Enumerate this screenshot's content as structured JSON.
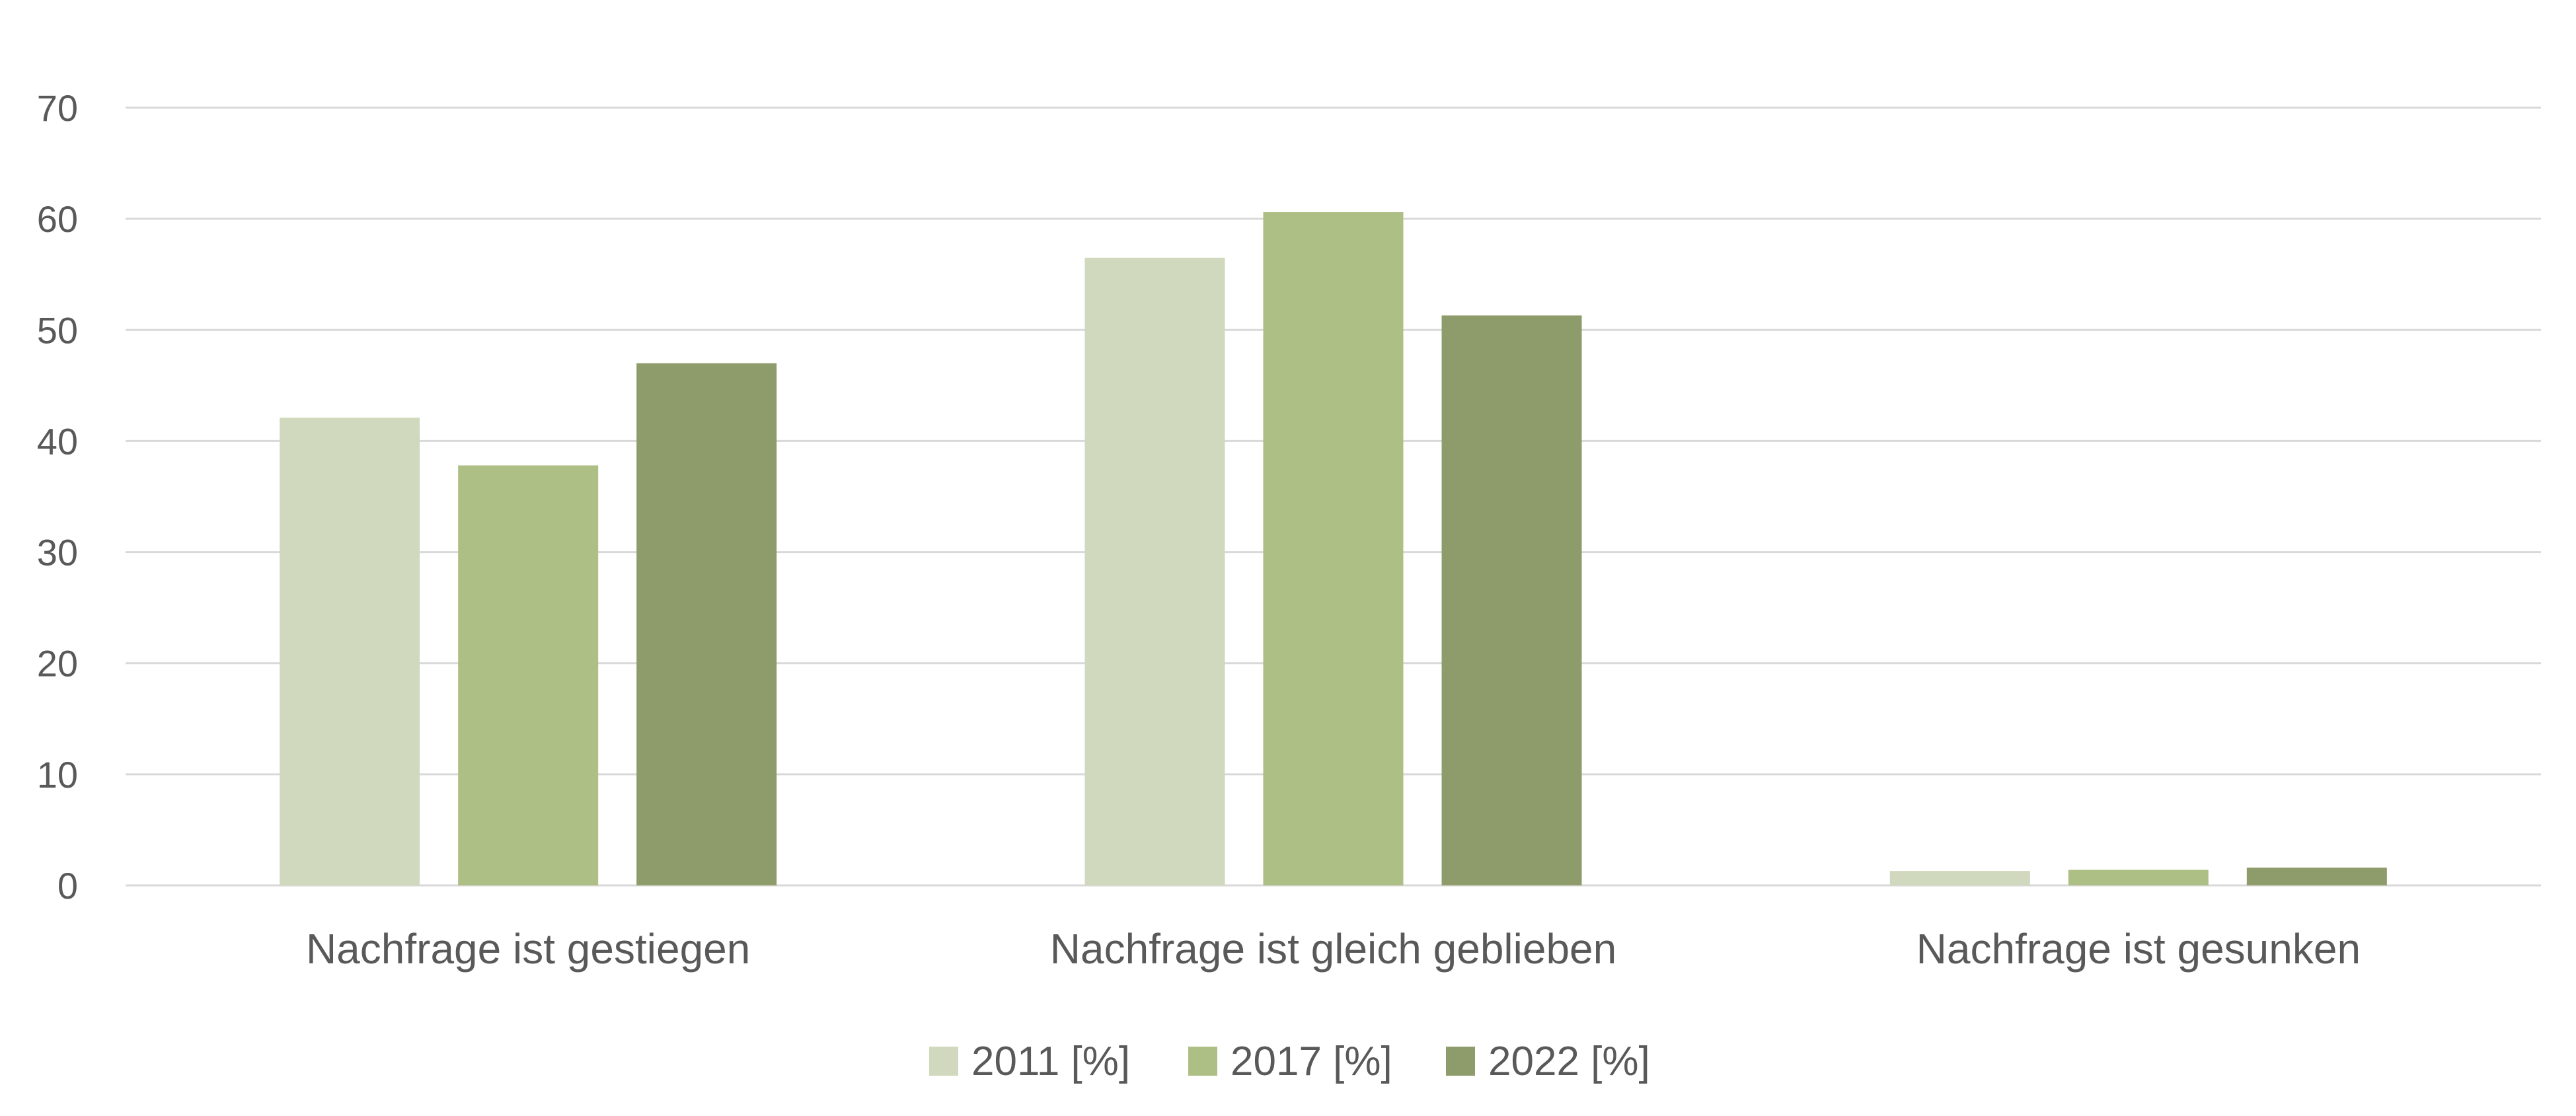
{
  "chart_data": {
    "type": "bar",
    "title": "",
    "xlabel": "",
    "ylabel": "",
    "categories": [
      "Nachfrage ist gestiegen",
      "Nachfrage ist gleich geblieben",
      "Nachfrage ist gesunken"
    ],
    "series": [
      {
        "name": "2011 [%]",
        "values": [
          42.1,
          56.5,
          1.3
        ],
        "color": "#d0d9bd"
      },
      {
        "name": "2017 [%]",
        "values": [
          37.8,
          60.6,
          1.4
        ],
        "color": "#adbf85"
      },
      {
        "name": "2022 [%]",
        "values": [
          47.0,
          51.3,
          1.6
        ],
        "color": "#8e9c6b"
      }
    ],
    "ylim": [
      0,
      70
    ],
    "yticks": [
      0,
      10,
      20,
      30,
      40,
      50,
      60,
      70
    ],
    "grid": true,
    "legend_position": "bottom"
  }
}
